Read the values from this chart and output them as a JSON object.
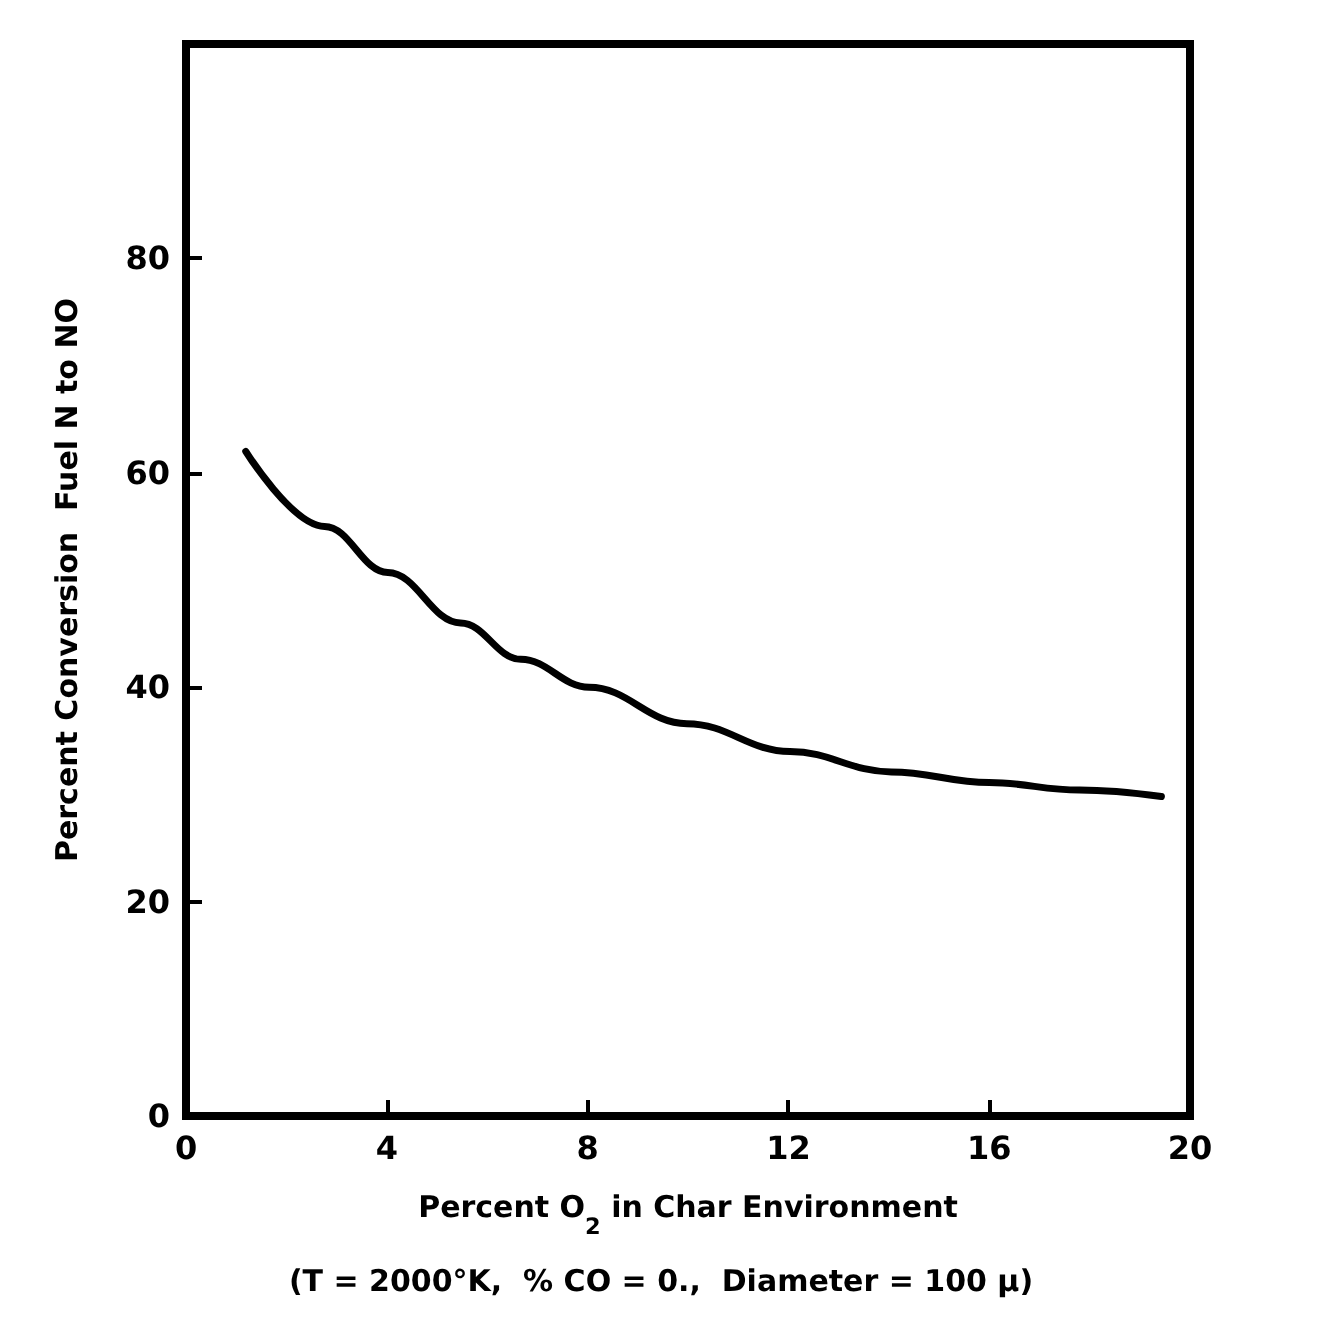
{
  "chart_data": {
    "type": "line",
    "xlabel": "Percent O$_{2}$ in Char Environment",
    "ylabel": "Percent Conversion  Fuel N to NO",
    "annotations": [
      "(T = 2000°K,  % CO = 0.,  Diameter = 100 μ)"
    ],
    "x": [
      1.19,
      2.76,
      4.02,
      5.47,
      6.67,
      8.03,
      9.98,
      12.03,
      14.05,
      16.0,
      17.8,
      19.43
    ],
    "series": [
      {
        "color": "#000000",
        "values": [
          62.0,
          55.0,
          50.7,
          46.0,
          42.6,
          40.0,
          36.6,
          34.0,
          32.1,
          31.1,
          30.4,
          29.8
        ]
      }
    ],
    "xlim": [
      0,
      20
    ],
    "xticks": [
      0,
      4,
      8,
      12,
      16,
      20
    ],
    "ylim": [
      0,
      100
    ],
    "yticks": [
      0,
      20,
      40,
      60,
      80
    ],
    "grid": false,
    "marker": "none",
    "line_style": "solid"
  }
}
